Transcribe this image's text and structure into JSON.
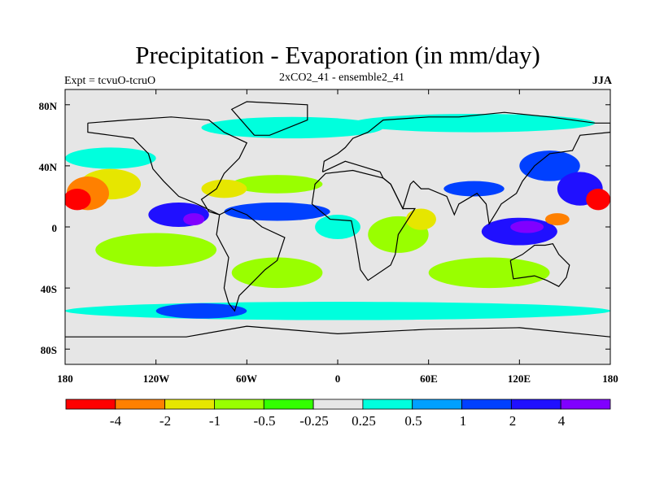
{
  "chart_data": {
    "type": "heatmap",
    "title": "Precipitation - Evaporation (in mm/day)",
    "subtitle_left": "Expt = tcvuO-tcruO",
    "subtitle_center": "2xCO2_41 - ensemble2_41",
    "subtitle_right": "JJA",
    "x_ticks": [
      "180",
      "120W",
      "60W",
      "0",
      "60E",
      "120E",
      "180"
    ],
    "x_tick_values": [
      -180,
      -120,
      -60,
      0,
      60,
      120,
      180
    ],
    "y_ticks": [
      "80N",
      "40N",
      "0",
      "40S",
      "80S"
    ],
    "y_tick_values": [
      80,
      40,
      0,
      -40,
      -80
    ],
    "xlim": [
      -180,
      180
    ],
    "ylim": [
      -90,
      90
    ],
    "colorbar": {
      "labels": [
        "-4",
        "-2",
        "-1",
        "-0.5",
        "-0.25",
        "0.25",
        "0.5",
        "1",
        "2",
        "4"
      ],
      "boundaries": [
        -4,
        -2,
        -1,
        -0.5,
        -0.25,
        0.25,
        0.5,
        1,
        2,
        4
      ],
      "colors": [
        "#ff0000",
        "#ff8000",
        "#e6e600",
        "#99ff00",
        "#33ff00",
        "#e6e6e6",
        "#00ffdd",
        "#00a0ff",
        "#0040ff",
        "#2010ff",
        "#8000ff"
      ]
    },
    "regions": [
      {
        "lon": -172,
        "lat": 18,
        "w": 18,
        "h": 14,
        "value": -5
      },
      {
        "lon": -165,
        "lat": 22,
        "w": 28,
        "h": 22,
        "value": -3
      },
      {
        "lon": -150,
        "lat": 28,
        "w": 40,
        "h": 20,
        "value": -1.5
      },
      {
        "lon": -150,
        "lat": 45,
        "w": 60,
        "h": 14,
        "value": 0.35
      },
      {
        "lon": -105,
        "lat": 8,
        "w": 40,
        "h": 16,
        "value": 2.5
      },
      {
        "lon": -95,
        "lat": 5,
        "w": 14,
        "h": 8,
        "value": 5
      },
      {
        "lon": -75,
        "lat": 25,
        "w": 30,
        "h": 12,
        "value": -1.2
      },
      {
        "lon": -40,
        "lat": 10,
        "w": 70,
        "h": 12,
        "value": 1.5
      },
      {
        "lon": -40,
        "lat": 28,
        "w": 60,
        "h": 12,
        "value": -0.7
      },
      {
        "lon": -120,
        "lat": -15,
        "w": 80,
        "h": 22,
        "value": -0.6
      },
      {
        "lon": -40,
        "lat": -30,
        "w": 60,
        "h": 20,
        "value": -0.6
      },
      {
        "lon": 0,
        "lat": 0,
        "w": 30,
        "h": 16,
        "value": 0.35
      },
      {
        "lon": 40,
        "lat": -5,
        "w": 40,
        "h": 24,
        "value": -0.6
      },
      {
        "lon": 55,
        "lat": 5,
        "w": 20,
        "h": 14,
        "value": -1.5
      },
      {
        "lon": 90,
        "lat": 25,
        "w": 40,
        "h": 10,
        "value": 1.5
      },
      {
        "lon": 120,
        "lat": -3,
        "w": 50,
        "h": 18,
        "value": 2.5
      },
      {
        "lon": 125,
        "lat": 0,
        "w": 22,
        "h": 8,
        "value": 5
      },
      {
        "lon": 145,
        "lat": 5,
        "w": 16,
        "h": 8,
        "value": -3
      },
      {
        "lon": 172,
        "lat": 18,
        "w": 16,
        "h": 14,
        "value": -5
      },
      {
        "lon": 160,
        "lat": 25,
        "w": 30,
        "h": 22,
        "value": 2.5
      },
      {
        "lon": 140,
        "lat": 40,
        "w": 40,
        "h": 20,
        "value": 1.5
      },
      {
        "lon": 100,
        "lat": -30,
        "w": 80,
        "h": 20,
        "value": -0.6
      },
      {
        "lon": -30,
        "lat": 65,
        "w": 120,
        "h": 14,
        "value": 0.35
      },
      {
        "lon": 90,
        "lat": 68,
        "w": 160,
        "h": 12,
        "value": 0.35
      },
      {
        "lon": 0,
        "lat": -55,
        "w": 360,
        "h": 12,
        "value": 0.35
      },
      {
        "lon": -90,
        "lat": -55,
        "w": 60,
        "h": 10,
        "value": 1.5
      }
    ]
  }
}
